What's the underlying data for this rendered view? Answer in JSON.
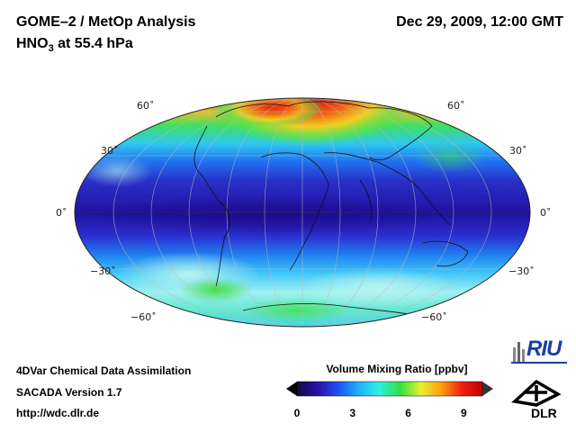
{
  "header": {
    "title": "GOME–2 / MetOp Analysis",
    "subtitle_main": "HNO",
    "subtitle_sub": "3",
    "subtitle_rest": " at 55.4 hPa",
    "datetime": "Dec 29, 2009, 12:00 GMT"
  },
  "map": {
    "projection": "Mollweide (Hammer-Aitoff style)",
    "latitude_labels": {
      "n60": "60˚",
      "n30": "30˚",
      "eq": "0˚",
      "s30": "−30˚",
      "s60": "−60˚"
    },
    "field": "HNO3 volume mixing ratio",
    "regions": [
      {
        "name": "arctic-maximum",
        "level": "very high (9+)"
      },
      {
        "name": "tropical-band",
        "level": "low (~0-1)"
      },
      {
        "name": "southern-midlatitudes",
        "level": "moderate (3-5)"
      }
    ]
  },
  "colorbar": {
    "title": "Volume Mixing Ratio [ppbv]",
    "min": 0,
    "max": 10,
    "ticks": [
      "0",
      "3",
      "6",
      "9"
    ],
    "colors": [
      "#140a40",
      "#2a10a8",
      "#1f50f0",
      "#1fb0ff",
      "#2ff0e0",
      "#30e040",
      "#e8f030",
      "#f8a010",
      "#f02010",
      "#c00000"
    ]
  },
  "footer": {
    "line1": "4DVar Chemical Data Assimilation",
    "line2": "SACADA Version 1.7",
    "line3": "http://wdc.dlr.de"
  },
  "logos": {
    "riu": "RIU",
    "dlr": "DLR"
  }
}
